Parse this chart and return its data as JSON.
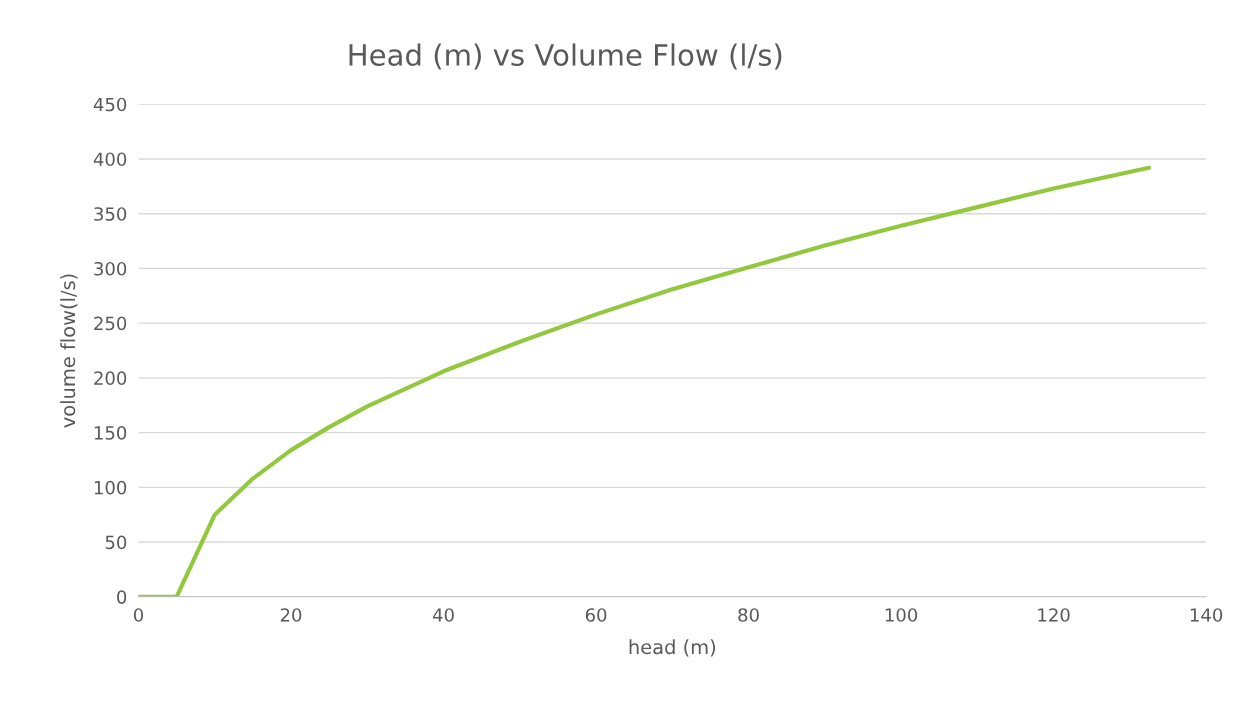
{
  "chart_data": {
    "type": "line",
    "title": "Head (m) vs Volume Flow (l/s)",
    "xlabel": "head (m)",
    "ylabel": "volume flow(l/s)",
    "x": [
      0,
      5,
      10,
      15,
      20,
      25,
      30,
      40,
      50,
      60,
      70,
      80,
      90,
      100,
      110,
      120,
      132.5
    ],
    "series": [
      {
        "color": "#92c83e",
        "values": [
          0,
          0,
          75,
          108,
          134,
          155,
          174,
          206,
          233,
          258,
          281,
          301,
          321,
          339,
          356,
          373,
          392
        ]
      }
    ],
    "xlim": [
      0,
      140
    ],
    "xticks": [
      0,
      20,
      40,
      60,
      80,
      100,
      120,
      140
    ],
    "ylim": [
      0,
      450
    ],
    "yticks": [
      0,
      50,
      100,
      150,
      200,
      250,
      300,
      350,
      400,
      450
    ],
    "grid": "y",
    "marker": "none",
    "line_style": "solid"
  }
}
